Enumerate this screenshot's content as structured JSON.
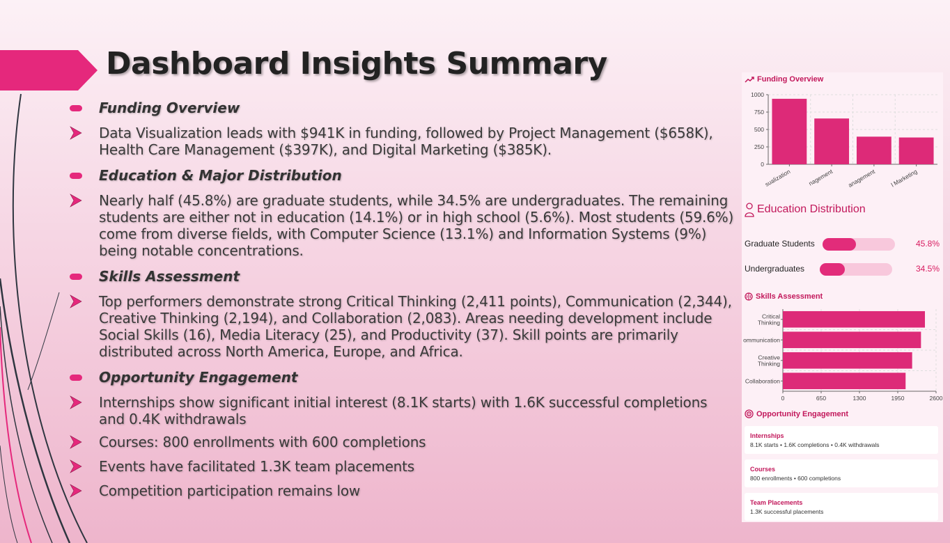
{
  "title": "Dashboard Insights Summary",
  "sections": [
    {
      "heading": "Funding Overview",
      "bullets": [
        "Data Visualization leads with $941K in funding, followed by Project Management ($658K), Health Care Management ($397K), and Digital Marketing ($385K)."
      ]
    },
    {
      "heading": "Education & Major Distribution",
      "bullets": [
        "Nearly half (45.8%) are graduate students, while 34.5% are undergraduates. The remaining students are either not in education (14.1%) or in high school (5.6%). Most students (59.6%) come from diverse fields, with Computer Science (13.1%) and Information Systems (9%) being notable concentrations."
      ]
    },
    {
      "heading": "Skills Assessment",
      "bullets": [
        "Top performers demonstrate strong Critical Thinking (2,411 points), Communication (2,344), Creative Thinking (2,194), and Collaboration (2,083). Areas needing development include Social Skills (16), Media Literacy (25), and Productivity (37). Skill points are primarily distributed across North America, Europe, and Africa."
      ]
    },
    {
      "heading": "Opportunity Engagement",
      "bullets": [
        "Internships show significant initial interest (8.1K starts) with 1.6K successful completions and 0.4K withdrawals",
        "Courses: 800 enrollments with 600 completions",
        "Events have facilitated 1.3K team placements",
        "Competition participation remains low"
      ]
    }
  ],
  "panel": {
    "funding": {
      "title": "Funding Overview",
      "icon": "trend-up-icon",
      "chart_data": {
        "type": "bar",
        "categories": [
          "Data Visualization",
          "Project Management",
          "Health Care Management",
          "Digital Marketing"
        ],
        "tick_labels": [
          "sualization",
          "nagement",
          "anagement",
          "l Marketing"
        ],
        "values": [
          941,
          658,
          397,
          385
        ],
        "ylim": [
          0,
          1000
        ],
        "yticks": [
          0,
          250,
          500,
          750,
          1000
        ],
        "grid": true
      }
    },
    "education": {
      "title": "Education Distribution",
      "icon": "users-icon",
      "rows": [
        {
          "label": "Graduate Students",
          "pct_text": "45.8%",
          "pct": 45.8
        },
        {
          "label": "Undergraduates",
          "pct_text": "34.5%",
          "pct": 34.5
        }
      ]
    },
    "skills": {
      "title": "Skills Assessment",
      "icon": "brain-icon",
      "chart_data": {
        "type": "bar",
        "orientation": "horizontal",
        "categories": [
          "Critical Thinking",
          "Communication",
          "Creative Thinking",
          "Collaboration"
        ],
        "tick_labels": [
          [
            "Critical",
            "Thinking"
          ],
          [
            "ommunication"
          ],
          [
            "Creative",
            "Thinking"
          ],
          [
            "Collaboration"
          ]
        ],
        "values": [
          2411,
          2344,
          2194,
          2083
        ],
        "xlim": [
          0,
          2600
        ],
        "xticks": [
          0,
          650,
          1300,
          1950,
          2600
        ],
        "grid": true
      }
    },
    "opportunity": {
      "title": "Opportunity Engagement",
      "icon": "target-icon",
      "cards": [
        {
          "title": "Internships",
          "desc": "8.1K starts • 1.6K completions • 0.4K withdrawals"
        },
        {
          "title": "Courses",
          "desc": "800 enrollments • 600 completions"
        },
        {
          "title": "Team Placements",
          "desc": "1.3K successful placements"
        }
      ]
    }
  },
  "colors": {
    "accent": "#e5287c",
    "bar": "#dd2a78",
    "panel_title": "#c2185b",
    "track": "#f8c8dc"
  }
}
